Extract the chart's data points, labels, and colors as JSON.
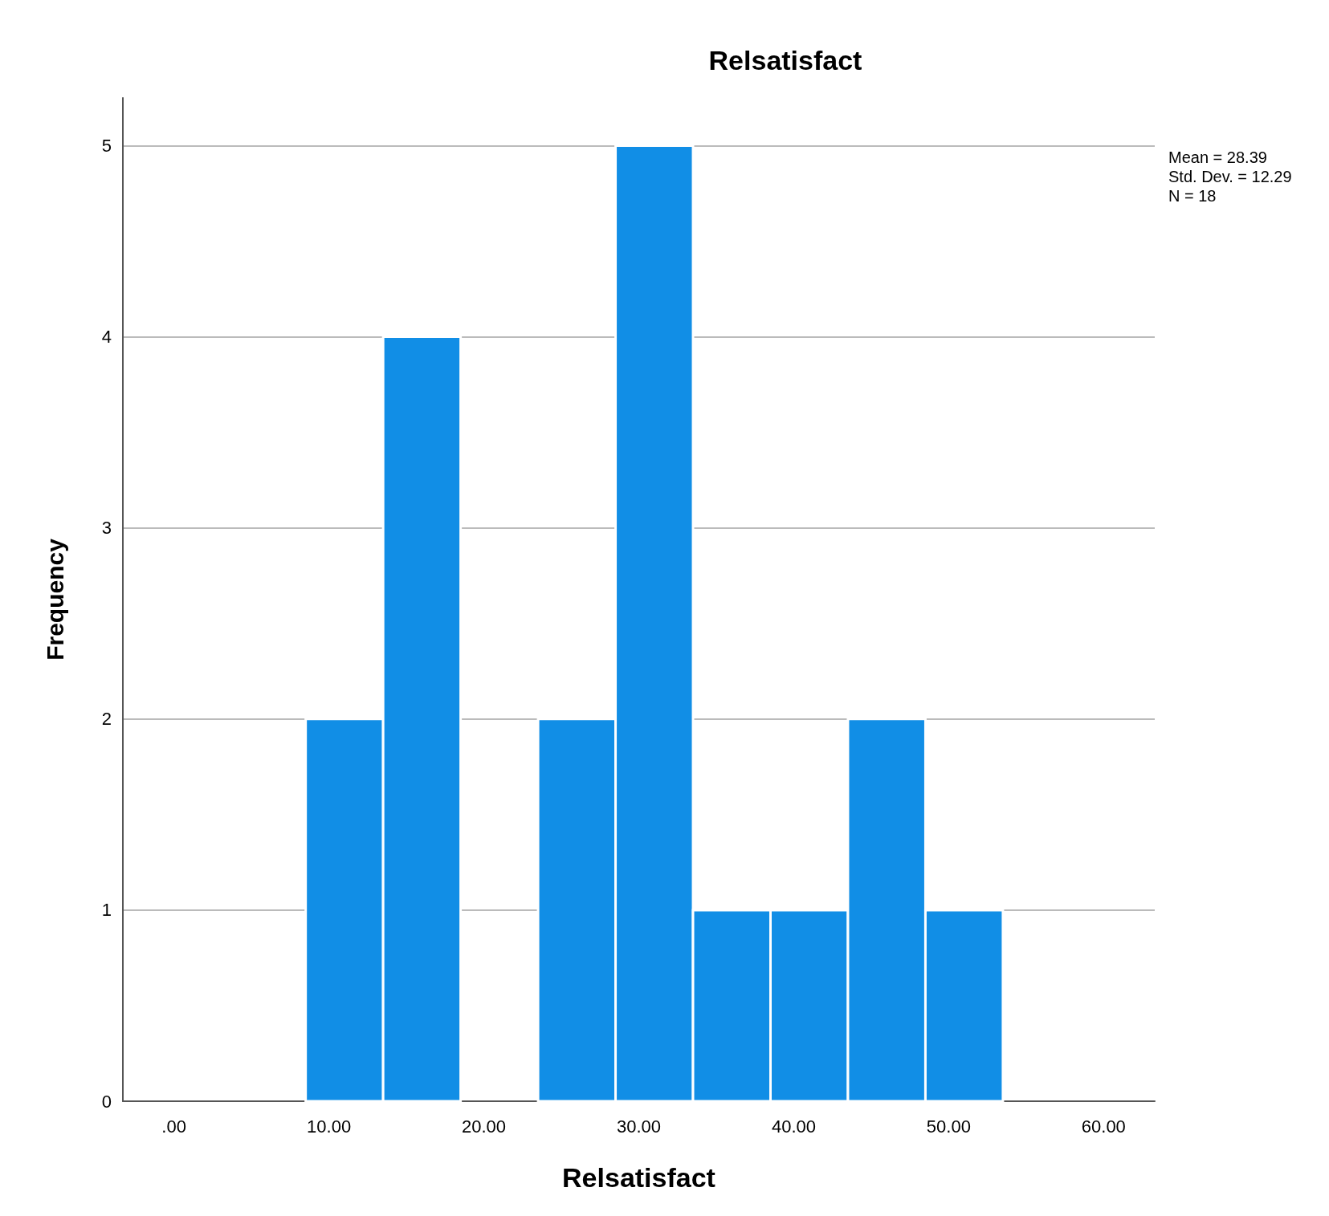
{
  "chart_data": {
    "type": "histogram",
    "title": "Relsatisfact",
    "xlabel": "Relsatisfact",
    "ylabel": "Frequency",
    "bins": [
      8.5,
      13.5,
      18.5,
      23.5,
      28.5,
      33.5,
      38.5,
      43.5,
      48.5,
      53.5
    ],
    "values": [
      2,
      4,
      0,
      2,
      5,
      1,
      1,
      2,
      1
    ],
    "color": "#118ee6",
    "xlim": [
      -3.3,
      63.3
    ],
    "xticks": [
      {
        "value": 0,
        "label": ".00"
      },
      {
        "value": 10,
        "label": "10.00"
      },
      {
        "value": 20,
        "label": "20.00"
      },
      {
        "value": 30,
        "label": "30.00"
      },
      {
        "value": 40,
        "label": "40.00"
      },
      {
        "value": 50,
        "label": "50.00"
      },
      {
        "value": 60,
        "label": "60.00"
      }
    ],
    "ylim": [
      0,
      5.25
    ],
    "yticks": [
      0,
      1,
      2,
      3,
      4,
      5
    ],
    "grid": "y",
    "annotations": [
      "Mean = 28.39",
      "Std. Dev. = 12.29",
      "N = 18"
    ]
  }
}
